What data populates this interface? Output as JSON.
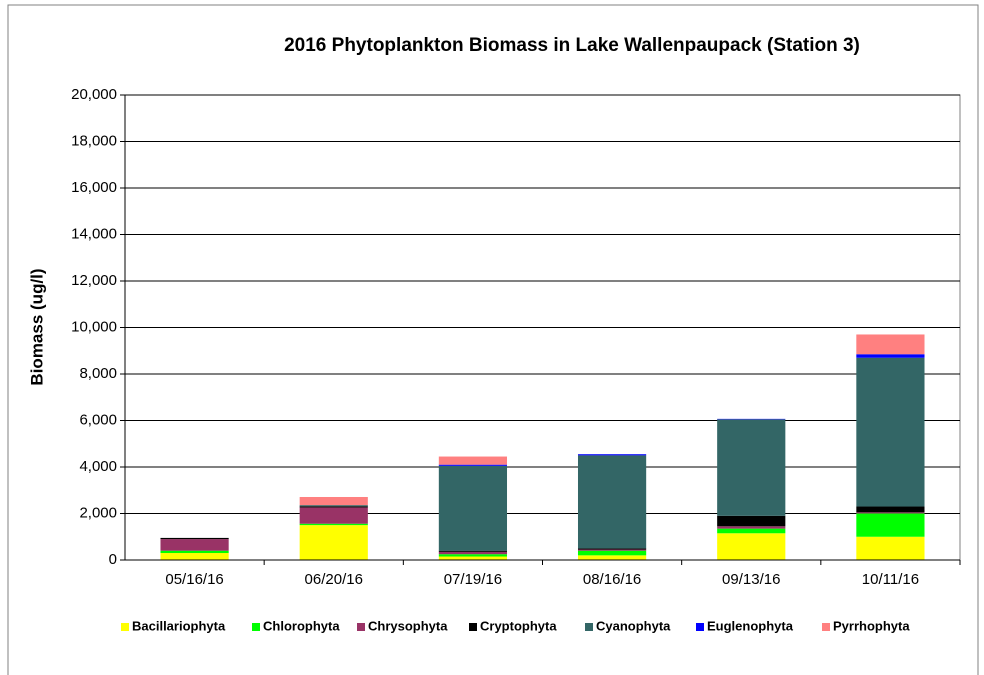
{
  "chart_data": {
    "type": "stacked-bar",
    "title": "2016 Phytoplankton Biomass in Lake Wallenpaupack (Station 3)",
    "y_label": "Biomass (ug/l)",
    "categories": [
      "05/16/16",
      "06/20/16",
      "07/19/16",
      "08/16/16",
      "09/13/16",
      "10/11/16"
    ],
    "series": [
      {
        "name": "Bacillariophyta",
        "color": "#ffff00",
        "values": [
          300,
          1500,
          150,
          200,
          1150,
          1000
        ]
      },
      {
        "name": "Chlorophyta",
        "color": "#00ff00",
        "values": [
          100,
          60,
          100,
          200,
          200,
          1000
        ]
      },
      {
        "name": "Chrysophyta",
        "color": "#993366",
        "values": [
          500,
          700,
          100,
          50,
          100,
          50
        ]
      },
      {
        "name": "Cryptophyta",
        "color": "#000000",
        "values": [
          50,
          50,
          50,
          50,
          450,
          250
        ]
      },
      {
        "name": "Cyanophyta",
        "color": "#336666",
        "values": [
          0,
          50,
          3650,
          4000,
          4150,
          6400
        ]
      },
      {
        "name": "Euglenophyta",
        "color": "#0000ff",
        "values": [
          0,
          0,
          50,
          50,
          20,
          150
        ]
      },
      {
        "name": "Pyrrhophyta",
        "color": "#ff8080",
        "values": [
          0,
          350,
          350,
          0,
          0,
          850
        ]
      }
    ],
    "ylim": [
      0,
      20000
    ],
    "yticks": [
      0,
      {
        "value": 2000,
        "label": "2,000"
      },
      {
        "value": 4000,
        "label": "4,000"
      },
      {
        "value": 6000,
        "label": "6,000"
      },
      {
        "value": 8000,
        "label": "8,000"
      },
      {
        "value": 10000,
        "label": "10,000"
      },
      {
        "value": 12000,
        "label": "12,000"
      },
      {
        "value": 14000,
        "label": "14,000"
      },
      {
        "value": 16000,
        "label": "16,000"
      },
      {
        "value": 18000,
        "label": "18,000"
      },
      {
        "value": 20000,
        "label": "20,000"
      }
    ],
    "grid": true,
    "legend": "bottom"
  }
}
